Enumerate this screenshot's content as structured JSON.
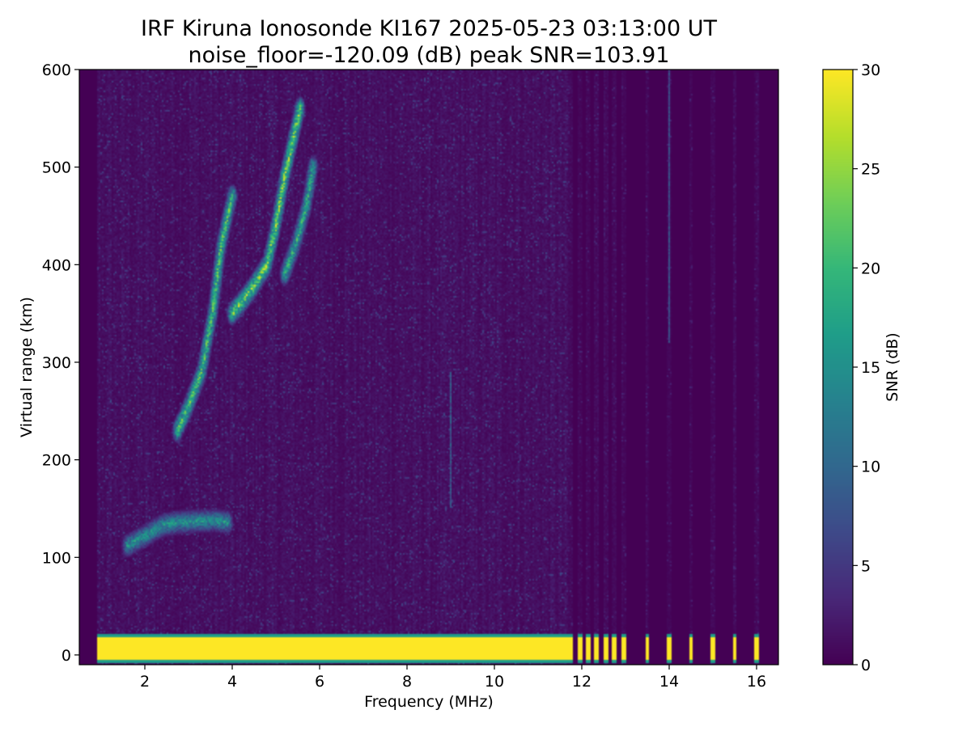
{
  "chart_data": {
    "type": "heatmap",
    "title": "IRF Kiruna Ionosonde KI167 2025-05-23 03:13:00  UT",
    "subtitle": "noise_floor=-120.09 (dB) peak SNR=103.91",
    "xlabel": "Frequency (MHz)",
    "ylabel": "Virtual range (km)",
    "xlim": [
      0.5,
      16.5
    ],
    "ylim": [
      -10,
      600
    ],
    "xticks": [
      "2",
      "4",
      "6",
      "8",
      "10",
      "12",
      "14",
      "16"
    ],
    "yticks": [
      "0",
      "100",
      "200",
      "300",
      "400",
      "500",
      "600"
    ],
    "colorbar": {
      "label": "SNR (dB)",
      "range": [
        0,
        30
      ],
      "ticks": [
        "0",
        "5",
        "10",
        "15",
        "20",
        "25",
        "30"
      ],
      "colormap": "viridis"
    },
    "grid": false,
    "background_noise_snr_db": 1,
    "continuous_sweep_mhz": [
      0.9,
      11.7
    ],
    "ground_echo": {
      "range_km": [
        -8,
        22
      ],
      "snr_db": 30,
      "high_freq_discrete_channels_mhz": [
        11.75,
        11.95,
        12.15,
        12.35,
        12.55,
        12.75,
        12.95,
        13.5,
        14.0,
        14.5,
        15.0,
        15.5,
        16.0
      ]
    },
    "traces": [
      {
        "label": "E region echo",
        "points": [
          [
            1.6,
            112
          ],
          [
            2.0,
            122
          ],
          [
            2.4,
            133
          ],
          [
            2.8,
            136
          ],
          [
            3.2,
            137
          ],
          [
            3.6,
            138
          ],
          [
            3.9,
            136
          ]
        ],
        "snr_db": 17
      },
      {
        "label": "F region O trace",
        "points": [
          [
            2.75,
            230
          ],
          [
            3.0,
            255
          ],
          [
            3.3,
            290
          ],
          [
            3.55,
            350
          ],
          [
            3.75,
            420
          ],
          [
            3.9,
            450
          ],
          [
            4.0,
            470
          ]
        ],
        "snr_db": 23
      },
      {
        "label": "F region cusp",
        "points": [
          [
            4.0,
            350
          ],
          [
            4.4,
            372
          ],
          [
            4.8,
            400
          ],
          [
            5.0,
            440
          ],
          [
            5.2,
            490
          ],
          [
            5.4,
            530
          ],
          [
            5.55,
            560
          ]
        ],
        "snr_db": 26
      },
      {
        "label": "F region X trace",
        "points": [
          [
            5.2,
            390
          ],
          [
            5.45,
            420
          ],
          [
            5.7,
            460
          ],
          [
            5.85,
            500
          ]
        ],
        "snr_db": 20
      }
    ],
    "interference_lines_mhz": [
      {
        "freq": 9.0,
        "range_km": [
          150,
          290
        ],
        "snr_db": 9
      },
      {
        "freq": 14.0,
        "range_km": [
          320,
          600
        ],
        "snr_db": 8
      }
    ]
  }
}
